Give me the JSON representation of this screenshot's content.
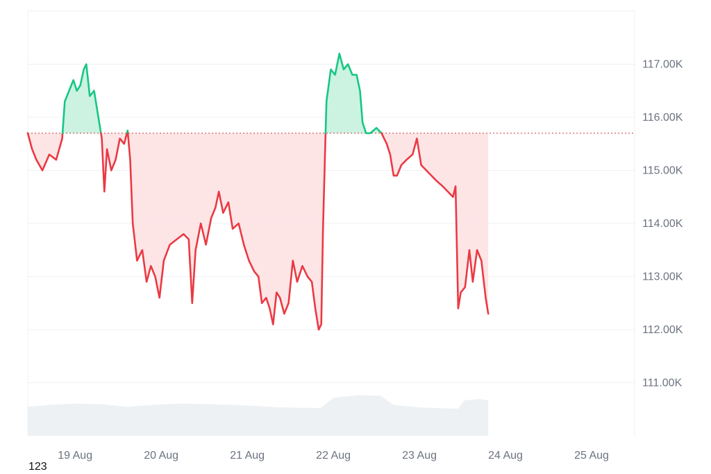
{
  "chart_data": {
    "type": "line",
    "title": "",
    "xlabel": "",
    "ylabel": "",
    "y_range": [
      110000,
      118000
    ],
    "y_ticks": [
      {
        "value": 111000,
        "label": "111.00K"
      },
      {
        "value": 112000,
        "label": "112.00K"
      },
      {
        "value": 113000,
        "label": "113.00K"
      },
      {
        "value": 114000,
        "label": "114.00K"
      },
      {
        "value": 115000,
        "label": "115.00K"
      },
      {
        "value": 116000,
        "label": "116.00K"
      },
      {
        "value": 117000,
        "label": "117.00K"
      }
    ],
    "x_ticks": [
      {
        "day": 0,
        "label": "19 Aug"
      },
      {
        "day": 1,
        "label": "20 Aug"
      },
      {
        "day": 2,
        "label": "21 Aug"
      },
      {
        "day": 3,
        "label": "22 Aug"
      },
      {
        "day": 4,
        "label": "23 Aug"
      },
      {
        "day": 5,
        "label": "24 Aug"
      },
      {
        "day": 6,
        "label": "25 Aug"
      }
    ],
    "x_range_days": [
      -0.55,
      6.5
    ],
    "baseline": 115700,
    "grid": true,
    "colors": {
      "above": "#16c784",
      "below": "#ea3943",
      "above_fill": "#c9f1df",
      "below_fill": "#fde0e2",
      "volume": "#eef1f4",
      "grid": "#eef0f3",
      "baseline": "#d14a4a"
    },
    "series": [
      {
        "values_by_day": [
          [
            -0.55,
            115700
          ],
          [
            -0.5,
            115400
          ],
          [
            -0.45,
            115200
          ],
          [
            -0.38,
            115000
          ],
          [
            -0.3,
            115300
          ],
          [
            -0.22,
            115200
          ],
          [
            -0.15,
            115600
          ],
          [
            -0.12,
            116300
          ],
          [
            -0.07,
            116500
          ],
          [
            -0.02,
            116700
          ],
          [
            0.02,
            116500
          ],
          [
            0.06,
            116600
          ],
          [
            0.1,
            116900
          ],
          [
            0.13,
            117000
          ],
          [
            0.17,
            116400
          ],
          [
            0.22,
            116500
          ],
          [
            0.27,
            116000
          ],
          [
            0.31,
            115600
          ],
          [
            0.34,
            114600
          ],
          [
            0.37,
            115400
          ],
          [
            0.42,
            115000
          ],
          [
            0.47,
            115200
          ],
          [
            0.52,
            115600
          ],
          [
            0.57,
            115500
          ],
          [
            0.61,
            115750
          ],
          [
            0.64,
            115200
          ],
          [
            0.67,
            114000
          ],
          [
            0.72,
            113300
          ],
          [
            0.78,
            113500
          ],
          [
            0.83,
            112900
          ],
          [
            0.88,
            113200
          ],
          [
            0.93,
            113000
          ],
          [
            0.98,
            112600
          ],
          [
            1.03,
            113300
          ],
          [
            1.1,
            113600
          ],
          [
            1.18,
            113700
          ],
          [
            1.26,
            113800
          ],
          [
            1.32,
            113700
          ],
          [
            1.36,
            112500
          ],
          [
            1.4,
            113500
          ],
          [
            1.46,
            114000
          ],
          [
            1.52,
            113600
          ],
          [
            1.58,
            114100
          ],
          [
            1.63,
            114300
          ],
          [
            1.67,
            114600
          ],
          [
            1.72,
            114200
          ],
          [
            1.78,
            114400
          ],
          [
            1.83,
            113900
          ],
          [
            1.9,
            114000
          ],
          [
            1.96,
            113600
          ],
          [
            2.02,
            113300
          ],
          [
            2.08,
            113100
          ],
          [
            2.13,
            113000
          ],
          [
            2.17,
            112500
          ],
          [
            2.22,
            112600
          ],
          [
            2.26,
            112400
          ],
          [
            2.3,
            112100
          ],
          [
            2.34,
            112700
          ],
          [
            2.38,
            112600
          ],
          [
            2.43,
            112300
          ],
          [
            2.48,
            112500
          ],
          [
            2.53,
            113300
          ],
          [
            2.58,
            112900
          ],
          [
            2.64,
            113200
          ],
          [
            2.7,
            113000
          ],
          [
            2.75,
            112900
          ],
          [
            2.79,
            112400
          ],
          [
            2.83,
            112000
          ],
          [
            2.86,
            112100
          ],
          [
            2.88,
            113900
          ],
          [
            2.92,
            116300
          ],
          [
            2.97,
            116900
          ],
          [
            3.02,
            116800
          ],
          [
            3.07,
            117200
          ],
          [
            3.12,
            116900
          ],
          [
            3.17,
            117000
          ],
          [
            3.22,
            116800
          ],
          [
            3.27,
            116800
          ],
          [
            3.31,
            116500
          ],
          [
            3.34,
            115900
          ],
          [
            3.38,
            115700
          ],
          [
            3.43,
            115700
          ],
          [
            3.5,
            115800
          ],
          [
            3.56,
            115700
          ],
          [
            3.62,
            115500
          ],
          [
            3.66,
            115300
          ],
          [
            3.7,
            114900
          ],
          [
            3.74,
            114900
          ],
          [
            3.79,
            115100
          ],
          [
            3.85,
            115200
          ],
          [
            3.92,
            115300
          ],
          [
            3.97,
            115600
          ],
          [
            4.02,
            115100
          ],
          [
            4.08,
            115000
          ],
          [
            4.14,
            114900
          ],
          [
            4.2,
            114800
          ],
          [
            4.27,
            114700
          ],
          [
            4.33,
            114600
          ],
          [
            4.39,
            114500
          ],
          [
            4.42,
            114700
          ],
          [
            4.45,
            112400
          ],
          [
            4.48,
            112700
          ],
          [
            4.53,
            112800
          ],
          [
            4.58,
            113500
          ],
          [
            4.62,
            112900
          ],
          [
            4.67,
            113500
          ],
          [
            4.72,
            113300
          ],
          [
            4.77,
            112600
          ],
          [
            4.8,
            112300
          ]
        ]
      }
    ],
    "volume_profile": [
      [
        -0.55,
        0.45
      ],
      [
        -0.3,
        0.48
      ],
      [
        0.0,
        0.5
      ],
      [
        0.3,
        0.49
      ],
      [
        0.6,
        0.45
      ],
      [
        0.9,
        0.48
      ],
      [
        1.2,
        0.5
      ],
      [
        1.6,
        0.49
      ],
      [
        2.0,
        0.47
      ],
      [
        2.4,
        0.44
      ],
      [
        2.85,
        0.43
      ],
      [
        3.0,
        0.59
      ],
      [
        3.3,
        0.63
      ],
      [
        3.55,
        0.62
      ],
      [
        3.7,
        0.48
      ],
      [
        4.0,
        0.44
      ],
      [
        4.45,
        0.42
      ],
      [
        4.52,
        0.55
      ],
      [
        4.7,
        0.57
      ],
      [
        4.8,
        0.55
      ]
    ]
  },
  "footer": {
    "label": "123"
  }
}
